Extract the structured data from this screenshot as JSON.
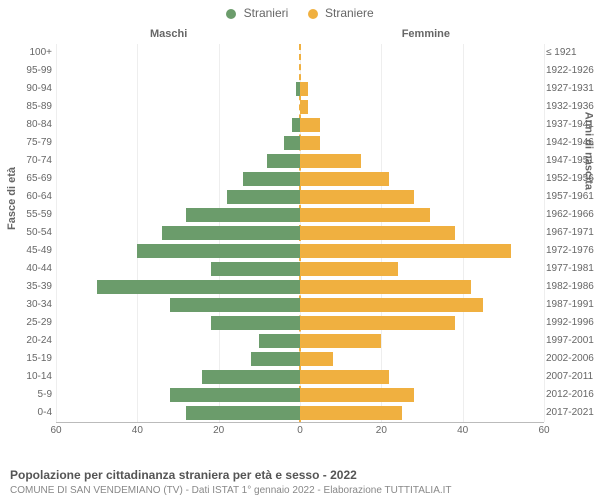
{
  "chart": {
    "type": "population-pyramid",
    "legend": [
      {
        "label": "Stranieri",
        "color": "#6b9c6b"
      },
      {
        "label": "Straniere",
        "color": "#f0b040"
      }
    ],
    "side_titles": {
      "left": "Maschi",
      "right": "Femmine"
    },
    "y_axis_left_label": "Fasce di età",
    "y_axis_right_label": "Anni di nascita",
    "x_max": 60,
    "x_ticks": [
      60,
      40,
      20,
      0,
      20,
      40,
      60
    ],
    "bar_colors": {
      "male": "#6b9c6b",
      "female": "#f0b040"
    },
    "background_color": "#ffffff",
    "grid_color": "#eeeeee",
    "rows": [
      {
        "age": "100+",
        "birth": "≤ 1921",
        "male": 0,
        "female": 0
      },
      {
        "age": "95-99",
        "birth": "1922-1926",
        "male": 0,
        "female": 0
      },
      {
        "age": "90-94",
        "birth": "1927-1931",
        "male": 1,
        "female": 2
      },
      {
        "age": "85-89",
        "birth": "1932-1936",
        "male": 0,
        "female": 2
      },
      {
        "age": "80-84",
        "birth": "1937-1941",
        "male": 2,
        "female": 5
      },
      {
        "age": "75-79",
        "birth": "1942-1946",
        "male": 4,
        "female": 5
      },
      {
        "age": "70-74",
        "birth": "1947-1951",
        "male": 8,
        "female": 15
      },
      {
        "age": "65-69",
        "birth": "1952-1956",
        "male": 14,
        "female": 22
      },
      {
        "age": "60-64",
        "birth": "1957-1961",
        "male": 18,
        "female": 28
      },
      {
        "age": "55-59",
        "birth": "1962-1966",
        "male": 28,
        "female": 32
      },
      {
        "age": "50-54",
        "birth": "1967-1971",
        "male": 34,
        "female": 38
      },
      {
        "age": "45-49",
        "birth": "1972-1976",
        "male": 40,
        "female": 52
      },
      {
        "age": "40-44",
        "birth": "1977-1981",
        "male": 22,
        "female": 24
      },
      {
        "age": "35-39",
        "birth": "1982-1986",
        "male": 50,
        "female": 42
      },
      {
        "age": "30-34",
        "birth": "1987-1991",
        "male": 32,
        "female": 45
      },
      {
        "age": "25-29",
        "birth": "1992-1996",
        "male": 22,
        "female": 38
      },
      {
        "age": "20-24",
        "birth": "1997-2001",
        "male": 10,
        "female": 20
      },
      {
        "age": "15-19",
        "birth": "2002-2006",
        "male": 12,
        "female": 8
      },
      {
        "age": "10-14",
        "birth": "2007-2011",
        "male": 24,
        "female": 22
      },
      {
        "age": "5-9",
        "birth": "2012-2016",
        "male": 32,
        "female": 28
      },
      {
        "age": "0-4",
        "birth": "2017-2021",
        "male": 28,
        "female": 25
      }
    ],
    "title": "Popolazione per cittadinanza straniera per età e sesso - 2022",
    "subtitle": "COMUNE DI SAN VENDEMIANO (TV) - Dati ISTAT 1° gennaio 2022 - Elaborazione TUTTITALIA.IT"
  }
}
